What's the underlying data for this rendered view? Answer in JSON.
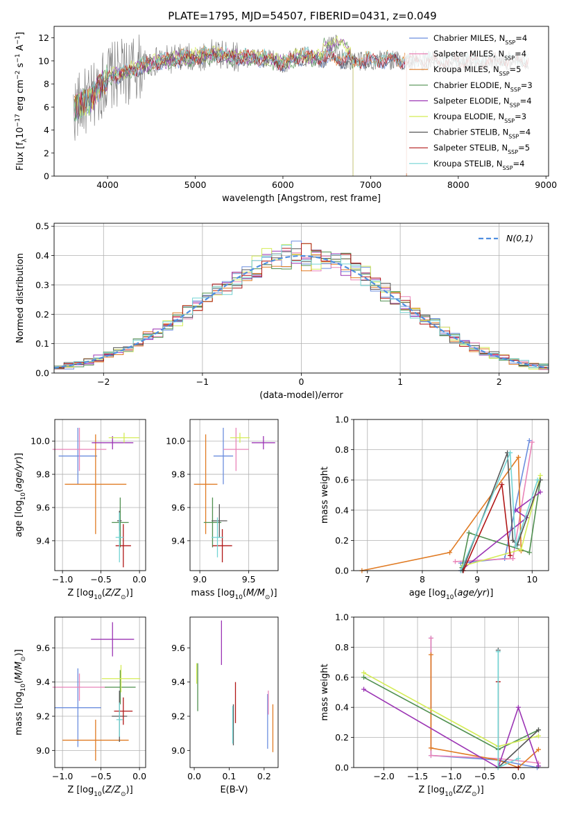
{
  "title": "PLATE=1795, MJD=54507, FIBERID=0431, z=0.049",
  "colors": {
    "Chabrier MILES": "#6b8ede",
    "Salpeter MILES": "#e984b8",
    "Kroupa MILES": "#e07a22",
    "Chabrier ELODIE": "#4f8f4f",
    "Salpeter ELODIE": "#9b34b4",
    "Kroupa ELODIE": "#d4ec55",
    "Chabrier STELIB": "#555555",
    "Salpeter STELIB": "#b01616",
    "Kroupa STELIB": "#72d4d4",
    "gauss": "#4f8fe0"
  },
  "chart_data": [
    {
      "id": "spectrum",
      "type": "line",
      "xlabel": "wavelength [Angstrom, rest frame]",
      "ylabel": "Flux [f_λ10^-17 erg cm^-2 s^-1 A^-1]",
      "xlim": [
        3390,
        9030
      ],
      "ylim": [
        0,
        13
      ],
      "xticks": [
        4000,
        5000,
        6000,
        7000,
        8000,
        9000
      ],
      "yticks": [
        0,
        2,
        4,
        6,
        8,
        10,
        12
      ],
      "grid": false,
      "legend_position": "right",
      "legend": [
        {
          "name": "Chabrier MILES",
          "nssp": "4"
        },
        {
          "name": "Salpeter MILES",
          "nssp": "4"
        },
        {
          "name": "Kroupa MILES",
          "nssp": "5"
        },
        {
          "name": "Chabrier ELODIE",
          "nssp": "3"
        },
        {
          "name": "Salpeter ELODIE",
          "nssp": "4"
        },
        {
          "name": "Kroupa ELODIE",
          "nssp": "3"
        },
        {
          "name": "Chabrier STELIB",
          "nssp": "4"
        },
        {
          "name": "Salpeter STELIB",
          "nssp": "5"
        },
        {
          "name": "Kroupa STELIB",
          "nssp": "4"
        }
      ],
      "continuum": [
        [
          3600,
          5.6
        ],
        [
          3700,
          6.3
        ],
        [
          3800,
          6.5
        ],
        [
          3900,
          7.6
        ],
        [
          4000,
          8.6
        ],
        [
          4200,
          9.0
        ],
        [
          4400,
          9.6
        ],
        [
          4600,
          10.0
        ],
        [
          4800,
          10.2
        ],
        [
          5000,
          10.3
        ],
        [
          5200,
          10.6
        ],
        [
          5400,
          10.4
        ],
        [
          5600,
          10.3
        ],
        [
          5800,
          10.2
        ],
        [
          6000,
          9.8
        ],
        [
          6200,
          10.4
        ],
        [
          6400,
          10.3
        ],
        [
          6600,
          10.2
        ],
        [
          6800,
          10.0
        ],
        [
          7000,
          10.0
        ],
        [
          7200,
          10.1
        ],
        [
          7400,
          10.0
        ]
      ],
      "notes": "observed spectrum (grey) spans ~3600-8800 A; model curves end near 7400 A (MILES), 6800 A (ELODIE), 9000 A (STELIB)"
    },
    {
      "id": "residuals",
      "type": "histogram",
      "xlabel": "(data-model)/error",
      "ylabel": "Normed distribution",
      "xlim": [
        -2.5,
        2.5
      ],
      "ylim": [
        0,
        0.51
      ],
      "xticks": [
        -2,
        -1,
        0,
        1,
        2
      ],
      "yticks": [
        0.0,
        0.1,
        0.2,
        0.3,
        0.4,
        0.5
      ],
      "grid": true,
      "bin_width": 0.1,
      "legend_position": "top-right",
      "legend_label": "N(0,1)",
      "model": "gaussian mean 0 sigma 1"
    },
    {
      "id": "age_Z",
      "type": "scatter",
      "xlabel": "Z [log10(Z/Z⊙)]",
      "ylabel": "age [log10(age/yr)]",
      "xlim": [
        -1.1,
        0.08
      ],
      "ylim": [
        9.22,
        10.13
      ],
      "xticks": [
        -1.0,
        -0.5,
        0.0
      ],
      "yticks": [
        9.4,
        9.6,
        9.8,
        10.0
      ],
      "grid": true,
      "points": [
        {
          "model": "Chabrier MILES",
          "x": -0.8,
          "xerr": 0.25,
          "y": 9.91,
          "yerr": 0.17
        },
        {
          "model": "Salpeter MILES",
          "x": -0.78,
          "xerr": 0.35,
          "y": 9.95,
          "yerr": 0.13
        },
        {
          "model": "Kroupa MILES",
          "x": -0.57,
          "xerr": 0.4,
          "y": 9.74,
          "yerr": 0.3
        },
        {
          "model": "Chabrier ELODIE",
          "x": -0.25,
          "xerr": 0.11,
          "y": 9.51,
          "yerr": 0.15
        },
        {
          "model": "Salpeter ELODIE",
          "x": -0.35,
          "xerr": 0.27,
          "y": 9.99,
          "yerr": 0.04
        },
        {
          "model": "Kroupa ELODIE",
          "x": -0.2,
          "xerr": 0.2,
          "y": 10.02,
          "yerr": 0.03
        },
        {
          "model": "Chabrier STELIB",
          "x": -0.26,
          "xerr": 0.03,
          "y": 9.52,
          "yerr": 0.06
        },
        {
          "model": "Salpeter STELIB",
          "x": -0.21,
          "xerr": 0.1,
          "y": 9.37,
          "yerr": 0.13
        },
        {
          "model": "Kroupa STELIB",
          "x": -0.26,
          "xerr": 0.05,
          "y": 9.42,
          "yerr": 0.15
        }
      ]
    },
    {
      "id": "age_mass",
      "type": "scatter",
      "xlabel": "mass [log10(M/M⊙)]",
      "ylabel": "",
      "xlim": [
        8.9,
        9.8
      ],
      "ylim": [
        9.22,
        10.13
      ],
      "xticks": [
        9.0,
        9.5
      ],
      "yticks": [
        9.4,
        9.6,
        9.8,
        10.0
      ],
      "grid": true,
      "points": [
        {
          "model": "Chabrier MILES",
          "x": 9.24,
          "xerr": 0.1,
          "y": 9.91,
          "yerr": 0.17
        },
        {
          "model": "Salpeter MILES",
          "x": 9.37,
          "xerr": 0.13,
          "y": 9.95,
          "yerr": 0.13
        },
        {
          "model": "Kroupa MILES",
          "x": 9.06,
          "xerr": 0.12,
          "y": 9.74,
          "yerr": 0.3
        },
        {
          "model": "Chabrier ELODIE",
          "x": 9.13,
          "xerr": 0.09,
          "y": 9.51,
          "yerr": 0.15
        },
        {
          "model": "Salpeter ELODIE",
          "x": 9.65,
          "xerr": 0.12,
          "y": 9.99,
          "yerr": 0.04
        },
        {
          "model": "Kroupa ELODIE",
          "x": 9.41,
          "xerr": 0.1,
          "y": 10.02,
          "yerr": 0.03
        },
        {
          "model": "Chabrier STELIB",
          "x": 9.2,
          "xerr": 0.08,
          "y": 9.52,
          "yerr": 0.1
        },
        {
          "model": "Salpeter STELIB",
          "x": 9.23,
          "xerr": 0.1,
          "y": 9.37,
          "yerr": 0.1
        },
        {
          "model": "Kroupa STELIB",
          "x": 9.18,
          "xerr": 0.06,
          "y": 9.42,
          "yerr": 0.12
        }
      ]
    },
    {
      "id": "mw_age",
      "type": "line",
      "xlabel": "age [log10(age/yr)]",
      "ylabel": "mass weight",
      "xlim": [
        6.75,
        10.3
      ],
      "ylim": [
        0,
        1.0
      ],
      "xticks": [
        7,
        8,
        9,
        10
      ],
      "yticks": [
        0.0,
        0.2,
        0.4,
        0.6,
        0.8,
        1.0
      ],
      "grid": true,
      "series": [
        {
          "model": "Chabrier MILES",
          "points": [
            [
              8.7,
              0.05
            ],
            [
              9.5,
              0.08
            ],
            [
              9.95,
              0.86
            ]
          ]
        },
        {
          "model": "Salpeter MILES",
          "points": [
            [
              8.6,
              0.06
            ],
            [
              9.65,
              0.08
            ],
            [
              10.0,
              0.85
            ]
          ]
        },
        {
          "model": "Kroupa MILES",
          "points": [
            [
              6.9,
              0.0
            ],
            [
              8.5,
              0.12
            ],
            [
              9.75,
              0.75
            ],
            [
              9.8,
              0.13
            ]
          ]
        },
        {
          "model": "Chabrier ELODIE",
          "points": [
            [
              8.72,
              0.02
            ],
            [
              8.85,
              0.25
            ],
            [
              9.95,
              0.12
            ],
            [
              10.15,
              0.6
            ]
          ]
        },
        {
          "model": "Salpeter ELODIE",
          "points": [
            [
              8.7,
              0.0
            ],
            [
              9.9,
              0.35
            ],
            [
              9.7,
              0.4
            ],
            [
              10.15,
              0.52
            ]
          ]
        },
        {
          "model": "Kroupa ELODIE",
          "points": [
            [
              8.73,
              0.03
            ],
            [
              9.8,
              0.14
            ],
            [
              10.15,
              0.63
            ]
          ]
        },
        {
          "model": "Chabrier STELIB",
          "points": [
            [
              8.73,
              0.0
            ],
            [
              9.55,
              0.78
            ],
            [
              9.65,
              0.2
            ],
            [
              9.73,
              0.17
            ],
            [
              10.15,
              0.6
            ]
          ]
        },
        {
          "model": "Salpeter STELIB",
          "points": [
            [
              8.75,
              0.0
            ],
            [
              9.45,
              0.57
            ],
            [
              9.6,
              0.1
            ]
          ]
        },
        {
          "model": "Kroupa STELIB",
          "points": [
            [
              8.7,
              0.0
            ],
            [
              9.6,
              0.78
            ],
            [
              9.7,
              0.16
            ],
            [
              10.1,
              0.6
            ]
          ]
        }
      ]
    },
    {
      "id": "mass_Z",
      "type": "scatter",
      "xlabel": "Z [log10(Z/Z⊙)]",
      "ylabel": "mass [log10(M/M⊙)]",
      "xlim": [
        -1.1,
        0.08
      ],
      "ylim": [
        8.9,
        9.78
      ],
      "xticks": [
        -1.0,
        -0.5,
        0.0
      ],
      "yticks": [
        9.0,
        9.2,
        9.4,
        9.6
      ],
      "grid": true,
      "points": [
        {
          "model": "Chabrier MILES",
          "x": -0.8,
          "xerr": 0.3,
          "y": 9.25,
          "yerr": 0.23
        },
        {
          "model": "Salpeter MILES",
          "x": -0.78,
          "xerr": 0.35,
          "y": 9.37,
          "yerr": 0.08
        },
        {
          "model": "Kroupa MILES",
          "x": -0.57,
          "xerr": 0.43,
          "y": 9.06,
          "yerr": 0.12
        },
        {
          "model": "Chabrier ELODIE",
          "x": -0.25,
          "xerr": 0.2,
          "y": 9.37,
          "yerr": 0.1
        },
        {
          "model": "Salpeter ELODIE",
          "x": -0.35,
          "xerr": 0.28,
          "y": 9.65,
          "yerr": 0.1
        },
        {
          "model": "Kroupa ELODIE",
          "x": -0.24,
          "xerr": 0.25,
          "y": 9.42,
          "yerr": 0.08
        },
        {
          "model": "Chabrier STELIB",
          "x": -0.26,
          "xerr": 0.1,
          "y": 9.2,
          "yerr": 0.15
        },
        {
          "model": "Salpeter STELIB",
          "x": -0.21,
          "xerr": 0.12,
          "y": 9.23,
          "yerr": 0.08
        },
        {
          "model": "Kroupa STELIB",
          "x": -0.26,
          "xerr": 0.04,
          "y": 9.18,
          "yerr": 0.1
        }
      ]
    },
    {
      "id": "mass_ebv",
      "type": "scatter",
      "xlabel": "E(B-V)",
      "ylabel": "",
      "xlim": [
        -0.012,
        0.24
      ],
      "ylim": [
        8.9,
        9.78
      ],
      "xticks": [
        0.0,
        0.1,
        0.2
      ],
      "yticks": [
        9.0,
        9.2,
        9.4,
        9.6
      ],
      "grid": false,
      "points": [
        {
          "model": "Chabrier MILES",
          "x": 0.21,
          "y": 9.17,
          "yerr": 0.16
        },
        {
          "model": "Salpeter MILES",
          "x": 0.212,
          "y": 9.28,
          "yerr": 0.07
        },
        {
          "model": "Kroupa MILES",
          "x": 0.225,
          "y": 9.13,
          "yerr": 0.14
        },
        {
          "model": "Chabrier ELODIE",
          "x": 0.01,
          "y": 9.37,
          "yerr": 0.14
        },
        {
          "model": "Salpeter ELODIE",
          "x": 0.078,
          "y": 9.63,
          "yerr": 0.13
        },
        {
          "model": "Kroupa ELODIE",
          "x": 0.007,
          "y": 9.45,
          "yerr": 0.06
        },
        {
          "model": "Chabrier STELIB",
          "x": 0.112,
          "y": 9.15,
          "yerr": 0.12
        },
        {
          "model": "Salpeter STELIB",
          "x": 0.118,
          "y": 9.28,
          "yerr": 0.12
        },
        {
          "model": "Kroupa STELIB",
          "x": 0.11,
          "y": 9.15,
          "yerr": 0.11
        }
      ]
    },
    {
      "id": "mw_Z",
      "type": "line",
      "xlabel": "Z [log10(Z/Z⊙)]",
      "ylabel": "mass weight",
      "xlim": [
        -2.45,
        0.45
      ],
      "ylim": [
        0,
        1.0
      ],
      "xticks": [
        -2.0,
        -1.5,
        -1.0,
        -0.5,
        0.0
      ],
      "yticks": [
        0.0,
        0.2,
        0.4,
        0.6,
        0.8,
        1.0
      ],
      "grid": true,
      "series": [
        {
          "model": "Chabrier MILES",
          "points": [
            [
              -1.3,
              0.86
            ],
            [
              -1.3,
              0.08
            ],
            [
              -0.3,
              0.05
            ],
            [
              0.28,
              0.0
            ]
          ]
        },
        {
          "model": "Salpeter MILES",
          "points": [
            [
              -1.3,
              0.86
            ],
            [
              -1.3,
              0.08
            ],
            [
              -0.3,
              0.06
            ],
            [
              0.3,
              0.03
            ]
          ]
        },
        {
          "model": "Kroupa MILES",
          "points": [
            [
              -1.3,
              0.75
            ],
            [
              -1.3,
              0.13
            ],
            [
              -0.3,
              0.05
            ],
            [
              0.0,
              0.0
            ],
            [
              0.3,
              0.12
            ]
          ]
        },
        {
          "model": "Chabrier ELODIE",
          "points": [
            [
              -2.3,
              0.6
            ],
            [
              -0.3,
              0.12
            ],
            [
              0.3,
              0.25
            ]
          ]
        },
        {
          "model": "Salpeter ELODIE",
          "points": [
            [
              -2.3,
              0.52
            ],
            [
              -0.3,
              0.0
            ],
            [
              0.0,
              0.4
            ],
            [
              0.3,
              0.01
            ]
          ]
        },
        {
          "model": "Kroupa ELODIE",
          "points": [
            [
              -2.3,
              0.63
            ],
            [
              -0.3,
              0.14
            ],
            [
              0.3,
              0.21
            ]
          ]
        },
        {
          "model": "Chabrier STELIB",
          "points": [
            [
              -0.3,
              0.78
            ],
            [
              -0.3,
              0.0
            ],
            [
              0.3,
              0.25
            ]
          ]
        },
        {
          "model": "Salpeter STELIB",
          "points": [
            [
              -0.3,
              0.57
            ],
            [
              -0.3,
              0.0
            ],
            [
              0.0,
              0.0
            ]
          ]
        },
        {
          "model": "Kroupa STELIB",
          "points": [
            [
              -0.3,
              0.77
            ],
            [
              -0.3,
              0.0
            ],
            [
              0.0,
              0.06
            ]
          ]
        }
      ]
    }
  ]
}
